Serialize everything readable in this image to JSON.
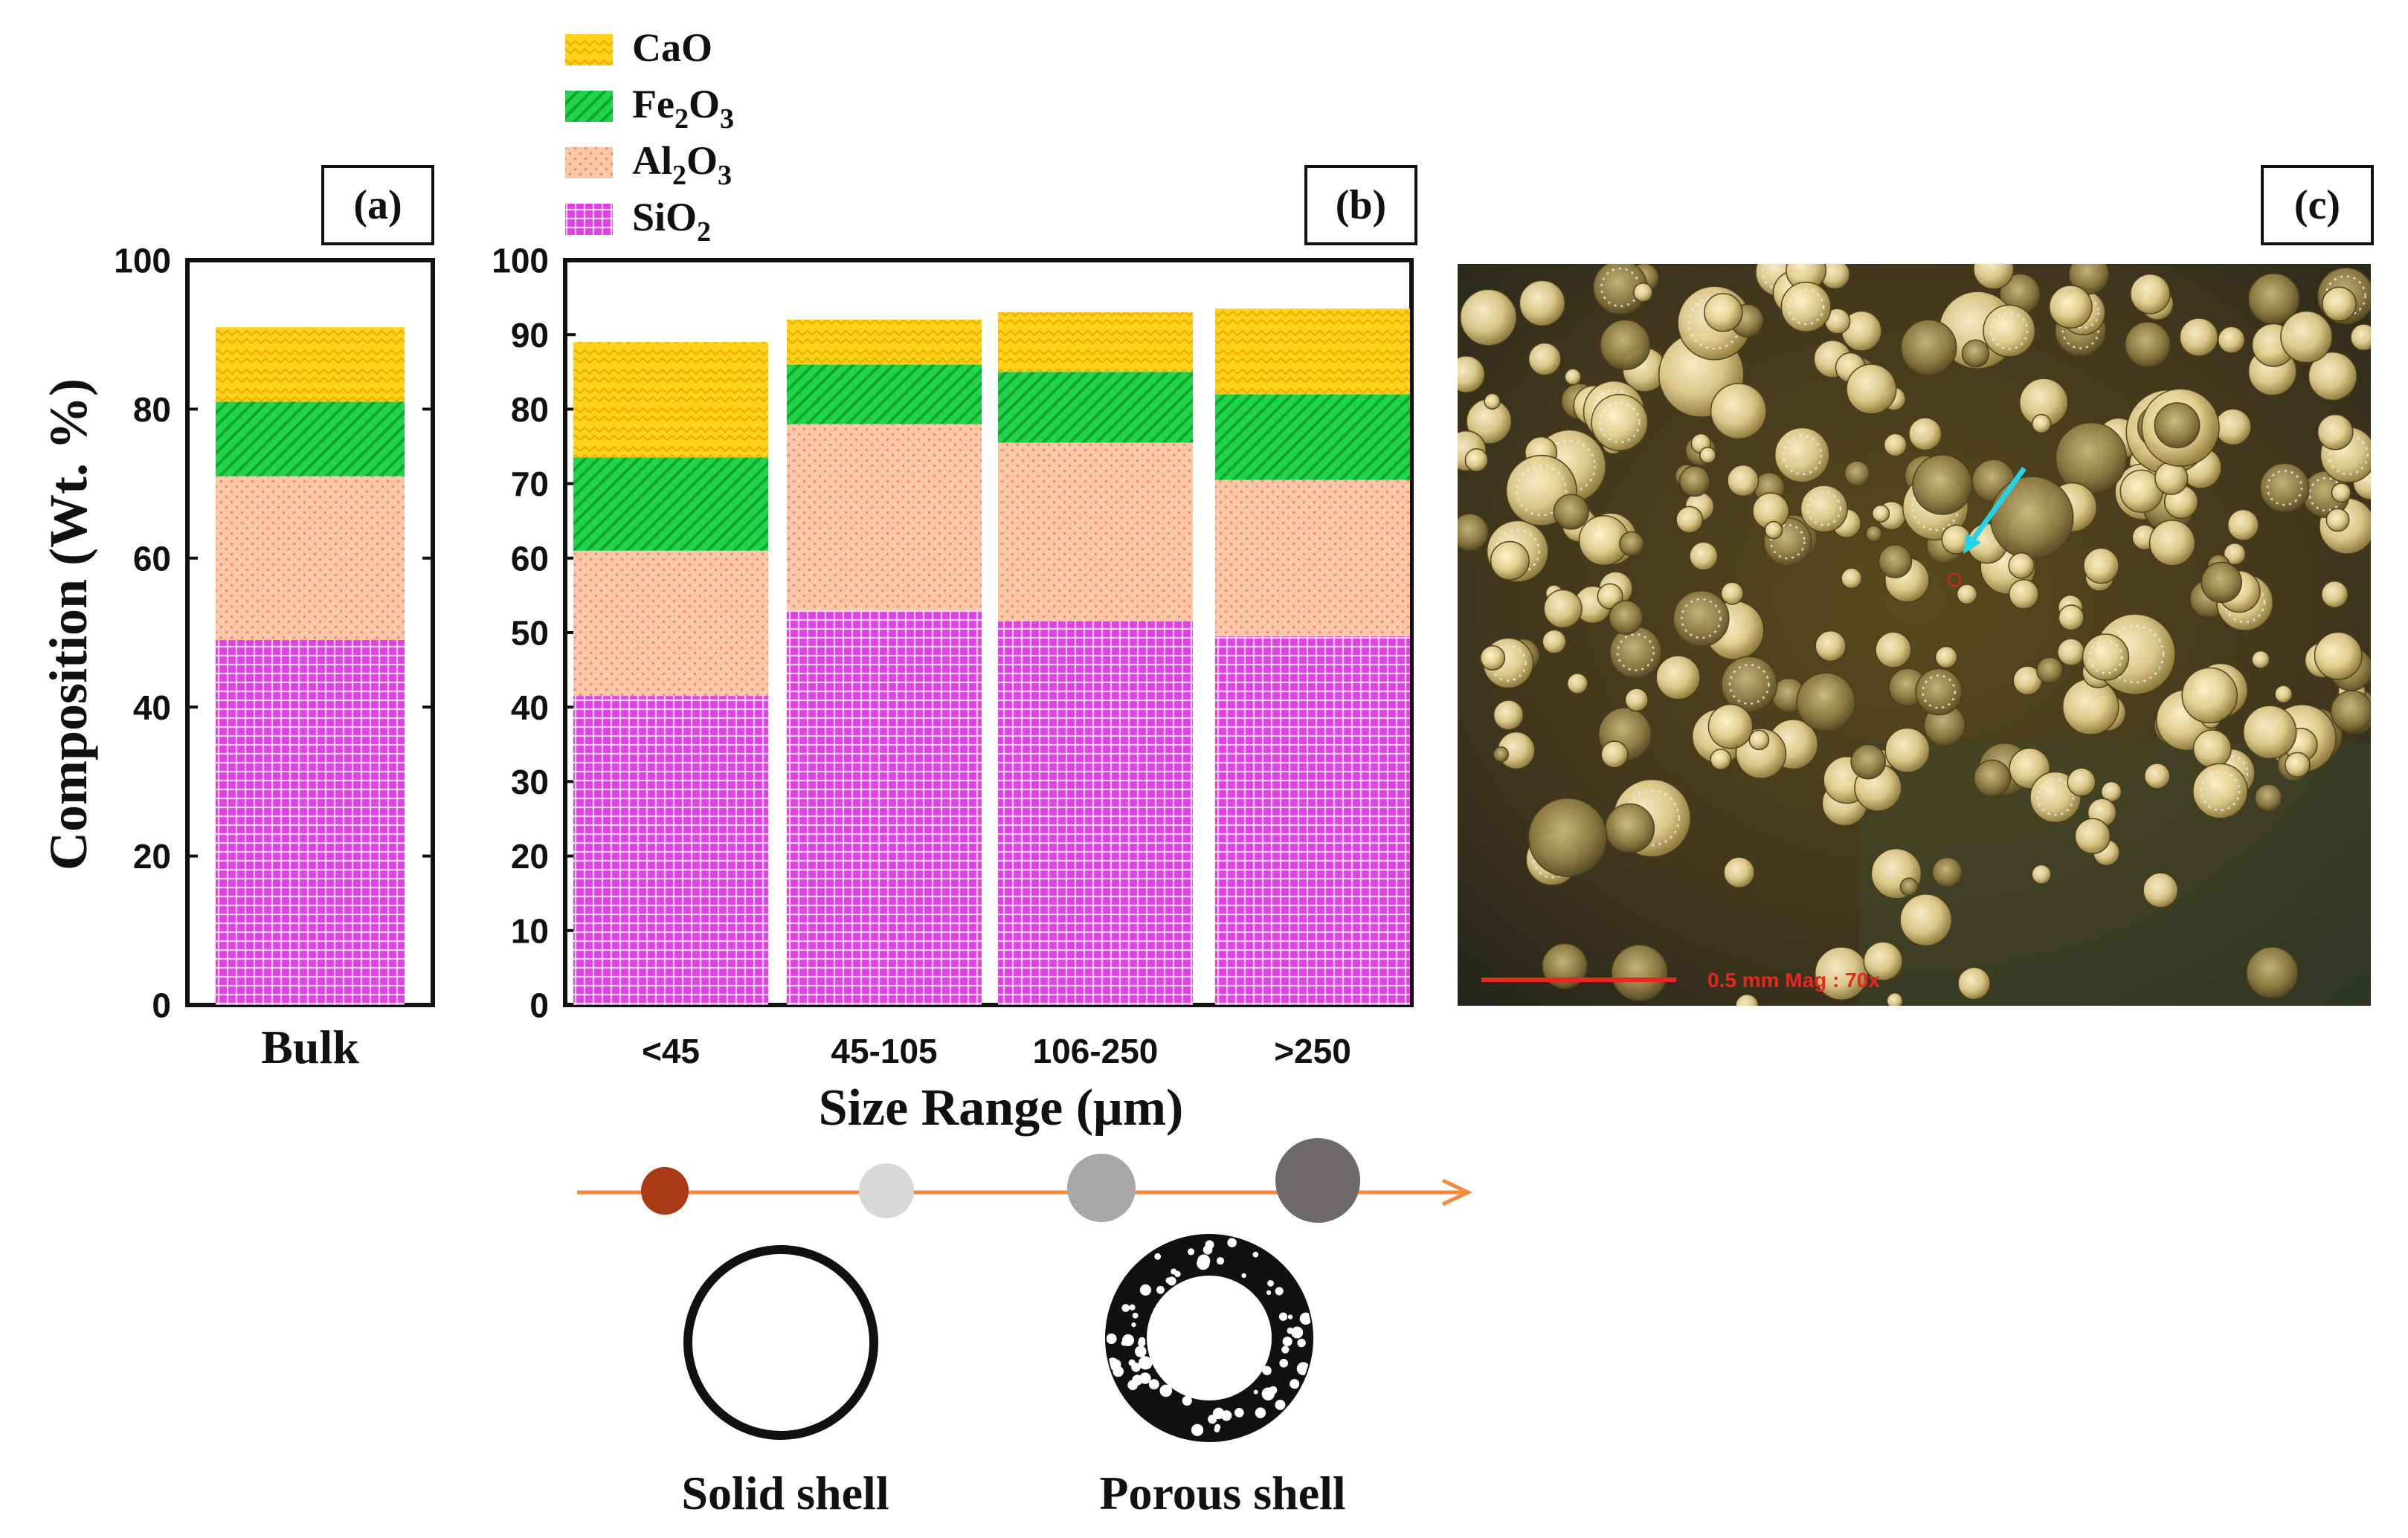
{
  "legend": {
    "items": [
      {
        "key": "CaO",
        "text": "CaO",
        "color": "#ffd21a",
        "base": "CaO",
        "sub": ""
      },
      {
        "key": "Fe2O3",
        "text": "Fe2O3",
        "color": "#1fd64a",
        "base": "Fe",
        "sub": "2",
        "base2": "O",
        "sub2": "3"
      },
      {
        "key": "Al2O3",
        "text": "Al2O3",
        "color": "#fbc8a7",
        "base": "Al",
        "sub": "2",
        "base2": "O",
        "sub2": "3"
      },
      {
        "key": "SiO2",
        "text": "SiO2",
        "color": "#e240e6",
        "base": "SiO",
        "sub": "2"
      }
    ]
  },
  "chart_data": [
    {
      "type": "bar",
      "stacked": true,
      "panel_label": "(a)",
      "categories": [
        "Bulk"
      ],
      "series": [
        {
          "name": "SiO2",
          "values": [
            49
          ]
        },
        {
          "name": "Al2O3",
          "values": [
            22
          ]
        },
        {
          "name": "Fe2O3",
          "values": [
            10
          ]
        },
        {
          "name": "CaO",
          "values": [
            10
          ]
        }
      ],
      "ylabel": "Composition (Wt. %)",
      "ylim": [
        0,
        100
      ],
      "yticks": [
        0,
        20,
        40,
        60,
        80,
        100
      ]
    },
    {
      "type": "bar",
      "stacked": true,
      "panel_label": "(b)",
      "categories": [
        "<45",
        "45-105",
        "106-250",
        ">250"
      ],
      "series": [
        {
          "name": "SiO2",
          "values": [
            41.5,
            53,
            51.5,
            49.5
          ]
        },
        {
          "name": "Al2O3",
          "values": [
            19.5,
            25,
            24,
            21
          ]
        },
        {
          "name": "Fe2O3",
          "values": [
            12.5,
            8,
            9.5,
            11.5
          ]
        },
        {
          "name": "CaO",
          "values": [
            15.5,
            6,
            8,
            11.5
          ]
        }
      ],
      "xlabel": "Size Range (μm)",
      "ylim": [
        0,
        100
      ],
      "yticks": [
        0,
        10,
        20,
        30,
        40,
        50,
        60,
        70,
        80,
        90,
        100
      ]
    }
  ],
  "micrograph": {
    "panel_label": "(c)",
    "scale_text": "0.5 mm  Mag : 70x"
  },
  "schematic": {
    "particle_colors": [
      "#a83a17",
      "#d8d8d8",
      "#a8a8a8",
      "#6e6a6a"
    ],
    "arrow_color": "#f28a3a",
    "solid_label": "Solid shell",
    "porous_label": "Porous shell"
  }
}
